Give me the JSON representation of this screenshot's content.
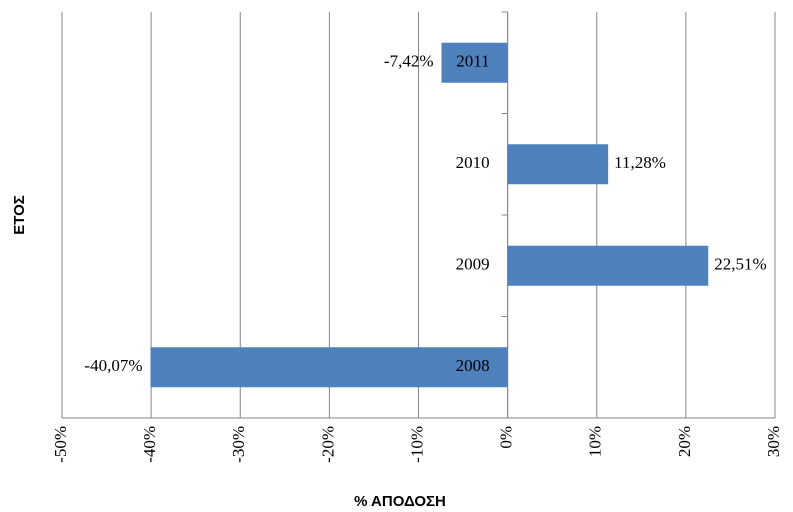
{
  "chart_data": {
    "type": "barh",
    "categories": [
      "2008",
      "2009",
      "2010",
      "2011"
    ],
    "values": [
      -40.07,
      22.51,
      11.28,
      -7.42
    ],
    "value_labels": [
      "-40,07%",
      "22,51%",
      "11,28%",
      "-7,42%"
    ],
    "color": "#4f81bd",
    "x_label": "% ΑΠΟΔΟΣΗ",
    "y_label": "ΕΤΟΣ",
    "xlim": [
      -50,
      30
    ],
    "xticks": [
      {
        "value": -50,
        "label": "-50%"
      },
      {
        "value": -40,
        "label": "-40%"
      },
      {
        "value": -30,
        "label": "-30%"
      },
      {
        "value": -20,
        "label": "-20%"
      },
      {
        "value": -10,
        "label": "-10%"
      },
      {
        "value": 0,
        "label": "0%"
      },
      {
        "value": 10,
        "label": "10%"
      },
      {
        "value": 20,
        "label": "20%"
      },
      {
        "value": 30,
        "label": "30%"
      }
    ],
    "grid": true
  }
}
